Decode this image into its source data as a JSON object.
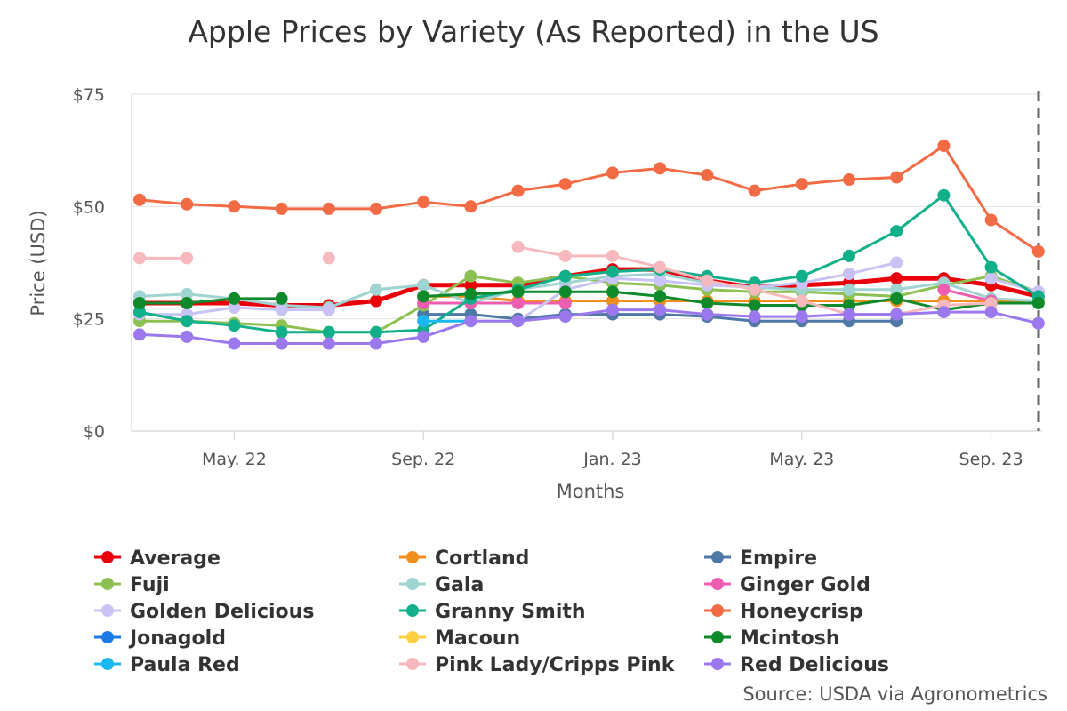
{
  "chart_data": {
    "type": "line",
    "title": "Apple Prices by Variety (As Reported) in the US",
    "xlabel": "Months",
    "ylabel": "Price (USD)",
    "ylim": [
      0,
      75
    ],
    "yticks": [
      "$0",
      "$25",
      "$50",
      "$75"
    ],
    "xticks": [
      "May. 22",
      "Sep. 22",
      "Jan. 23",
      "May. 23",
      "Sep. 23"
    ],
    "x": [
      "2022-03",
      "2022-04",
      "2022-05",
      "2022-06",
      "2022-07",
      "2022-08",
      "2022-09",
      "2022-10",
      "2022-11",
      "2022-12",
      "2023-01",
      "2023-02",
      "2023-03",
      "2023-04",
      "2023-05",
      "2023-06",
      "2023-07",
      "2023-08",
      "2023-09",
      "2023-10"
    ],
    "grid": true,
    "legend_position": "bottom",
    "source": "Source: USDA via Agronometrics",
    "series": [
      {
        "name": "Average",
        "color": "#e8000b",
        "width": 5,
        "values": [
          28.5,
          28.5,
          28.5,
          28,
          28,
          29,
          32.5,
          32.5,
          32.5,
          34.5,
          36,
          36,
          33.5,
          32,
          32.5,
          33,
          34,
          34,
          32.5,
          30
        ]
      },
      {
        "name": "Cortland",
        "color": "#f28e1c",
        "values": [
          null,
          null,
          null,
          null,
          null,
          null,
          30,
          30,
          29,
          29,
          29,
          29,
          29,
          29,
          29,
          29,
          29,
          29,
          29,
          29
        ]
      },
      {
        "name": "Empire",
        "color": "#4e79a7",
        "values": [
          null,
          null,
          null,
          null,
          null,
          null,
          26,
          26,
          25,
          26,
          26,
          26,
          25.5,
          24.5,
          24.5,
          24.5,
          24.5,
          null,
          null,
          null
        ]
      },
      {
        "name": "Fuji",
        "color": "#8cc152",
        "values": [
          24.5,
          24.5,
          24,
          23.5,
          22,
          22,
          28,
          34.5,
          33,
          34.5,
          33,
          32.5,
          31.5,
          31,
          31,
          30.5,
          30,
          32.5,
          34.5,
          31
        ]
      },
      {
        "name": "Gala",
        "color": "#9fd4d2",
        "values": [
          30,
          30.5,
          29.5,
          28,
          27.5,
          31.5,
          32.5,
          28.5,
          31.5,
          33,
          34.5,
          35,
          33,
          32,
          31.5,
          31.5,
          31.5,
          33,
          29.5,
          29
        ]
      },
      {
        "name": "Ginger Gold",
        "color": "#ee5eb0",
        "values": [
          null,
          null,
          null,
          null,
          null,
          null,
          28.5,
          28.5,
          28.5,
          28.5,
          null,
          null,
          null,
          null,
          null,
          null,
          null,
          31.5,
          29,
          null
        ]
      },
      {
        "name": "Golden Delicious",
        "color": "#c9c3f5",
        "values": [
          26,
          26,
          27.5,
          27,
          27,
          null,
          null,
          null,
          24.5,
          31.5,
          34,
          33.5,
          32.5,
          32,
          33,
          35,
          37.5,
          null,
          34,
          31
        ]
      },
      {
        "name": "Granny Smith",
        "color": "#12b08a",
        "values": [
          26.5,
          24.5,
          23.5,
          22,
          22,
          22,
          22.5,
          29.5,
          31.5,
          34.5,
          35.5,
          36,
          34.5,
          33,
          34.5,
          39,
          44.5,
          52.5,
          36.5,
          30
        ]
      },
      {
        "name": "Honeycrisp",
        "color": "#f26b45",
        "values": [
          51.5,
          50.5,
          50,
          49.5,
          49.5,
          49.5,
          51,
          50,
          53.5,
          55,
          57.5,
          58.5,
          57,
          53.5,
          55,
          56,
          56.5,
          63.5,
          47,
          40
        ]
      },
      {
        "name": "Jonagold",
        "color": "#1a7be8",
        "values": [
          null,
          null,
          null,
          null,
          null,
          null,
          null,
          null,
          null,
          null,
          null,
          null,
          null,
          null,
          null,
          null,
          null,
          null,
          null,
          null
        ]
      },
      {
        "name": "Macoun",
        "color": "#fdd044",
        "values": [
          null,
          null,
          null,
          null,
          null,
          null,
          null,
          null,
          null,
          null,
          null,
          null,
          null,
          null,
          null,
          null,
          null,
          null,
          null,
          null
        ]
      },
      {
        "name": "Mcintosh",
        "color": "#0e8a2a",
        "values": [
          28.5,
          28.5,
          29.5,
          29.5,
          null,
          null,
          30,
          30.5,
          31,
          31,
          31,
          30,
          28.5,
          28,
          28,
          28,
          29.5,
          27,
          28.5,
          28.5
        ]
      },
      {
        "name": "Paula Red",
        "color": "#19b8f0",
        "values": [
          null,
          null,
          null,
          null,
          null,
          null,
          24.5,
          24.5,
          null,
          null,
          null,
          null,
          null,
          null,
          null,
          null,
          null,
          null,
          null,
          null
        ]
      },
      {
        "name": "Pink Lady/Cripps Pink",
        "color": "#f7b9bd",
        "values": [
          38.5,
          38.5,
          null,
          null,
          38.5,
          null,
          null,
          null,
          41,
          39,
          39,
          36.5,
          33.5,
          31.5,
          29,
          26,
          26,
          28,
          28.5,
          null
        ]
      },
      {
        "name": "Red Delicious",
        "color": "#9b78ee",
        "values": [
          21.5,
          21,
          19.5,
          19.5,
          19.5,
          19.5,
          21,
          24.5,
          24.5,
          25.5,
          27,
          27,
          26,
          25.5,
          25.5,
          26,
          26,
          26.5,
          26.5,
          24
        ]
      }
    ]
  }
}
